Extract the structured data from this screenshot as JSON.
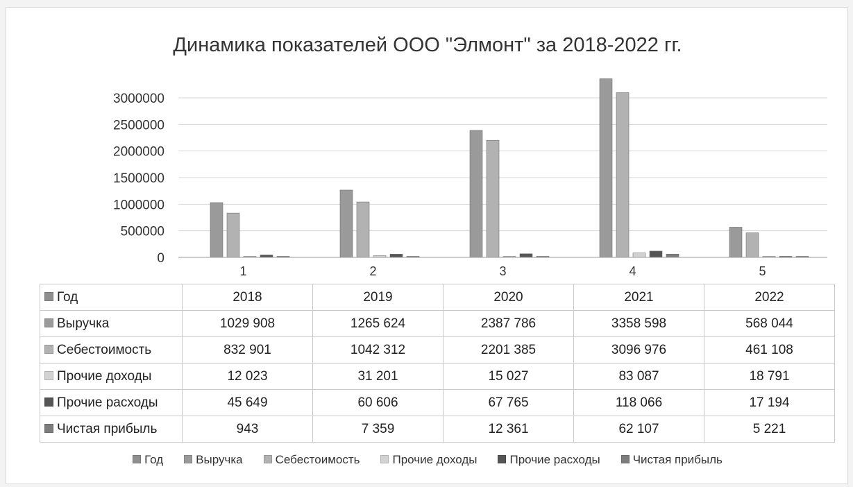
{
  "chart_data": {
    "type": "bar",
    "title": "Динамика показателей ООО \"Элмонт\" за 2018-2022 гг.",
    "categories": [
      "1",
      "2",
      "3",
      "4",
      "5"
    ],
    "yticks": [
      "3000000",
      "2500000",
      "2000000",
      "1500000",
      "1000000",
      "500000",
      "0"
    ],
    "ylim": [
      0,
      3500000
    ],
    "grid": true,
    "legend_position": "bottom",
    "series": [
      {
        "name": "Год",
        "color": "#8f8f8f",
        "values": [
          2018,
          2019,
          2020,
          2021,
          2022
        ],
        "labels": [
          "2018",
          "2019",
          "2020",
          "2021",
          "2022"
        ]
      },
      {
        "name": "Выручка",
        "color": "#9a9a9a",
        "values": [
          1029908,
          1265624,
          2387786,
          3358598,
          568044
        ],
        "labels": [
          "1029 908",
          "1265 624",
          "2387 786",
          "3358 598",
          "568 044"
        ]
      },
      {
        "name": "Себестоимость",
        "color": "#b2b2b2",
        "values": [
          832901,
          1042312,
          2201385,
          3096976,
          461108
        ],
        "labels": [
          "832 901",
          "1042 312",
          "2201 385",
          "3096 976",
          "461 108"
        ]
      },
      {
        "name": "Прочие доходы",
        "color": "#d2d2d2",
        "values": [
          12023,
          31201,
          15027,
          83087,
          18791
        ],
        "labels": [
          "12 023",
          "31 201",
          "15 027",
          "83 087",
          "18 791"
        ]
      },
      {
        "name": "Прочие расходы",
        "color": "#555555",
        "values": [
          45649,
          60606,
          67765,
          118066,
          17194
        ],
        "labels": [
          "45 649",
          "60 606",
          "67 765",
          "118 066",
          "17 194"
        ]
      },
      {
        "name": "Чистая прибыль",
        "color": "#7d7d7d",
        "values": [
          943,
          7359,
          12361,
          62107,
          5221
        ],
        "labels": [
          "943",
          "7 359",
          "12 361",
          "62 107",
          "5 221"
        ]
      }
    ]
  }
}
